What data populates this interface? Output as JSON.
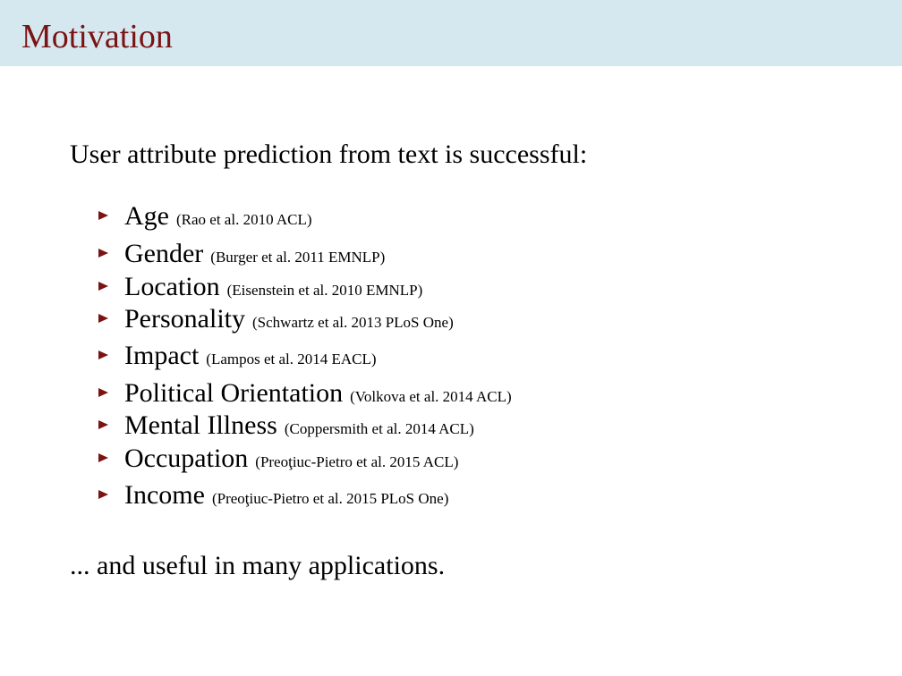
{
  "slide": {
    "title": "Motivation",
    "lead": "User attribute prediction from text is successful:",
    "items": [
      {
        "term": "Age",
        "ref": "(Rao et al. 2010 ACL)"
      },
      {
        "term": "Gender",
        "ref": "(Burger et al. 2011 EMNLP)"
      },
      {
        "term": "Location",
        "ref": "(Eisenstein et al. 2010 EMNLP)"
      },
      {
        "term": "Personality",
        "ref": "(Schwartz et al. 2013 PLoS One)"
      },
      {
        "term": "Impact",
        "ref": "(Lampos et al. 2014 EACL)"
      },
      {
        "term": "Political Orientation",
        "ref": "(Volkova et al. 2014 ACL)"
      },
      {
        "term": "Mental Illness",
        "ref": "(Coppersmith et al. 2014 ACL)"
      },
      {
        "term": "Occupation",
        "ref": "(Preoţiuc-Pietro et al. 2015 ACL)"
      },
      {
        "term": "Income",
        "ref": "(Preoţiuc-Pietro et al. 2015 PLoS One)"
      }
    ],
    "closing": "... and useful in many applications."
  },
  "colors": {
    "header_band": "#d6e8ef",
    "title": "#7a1313",
    "bullet": "#7a1313"
  }
}
